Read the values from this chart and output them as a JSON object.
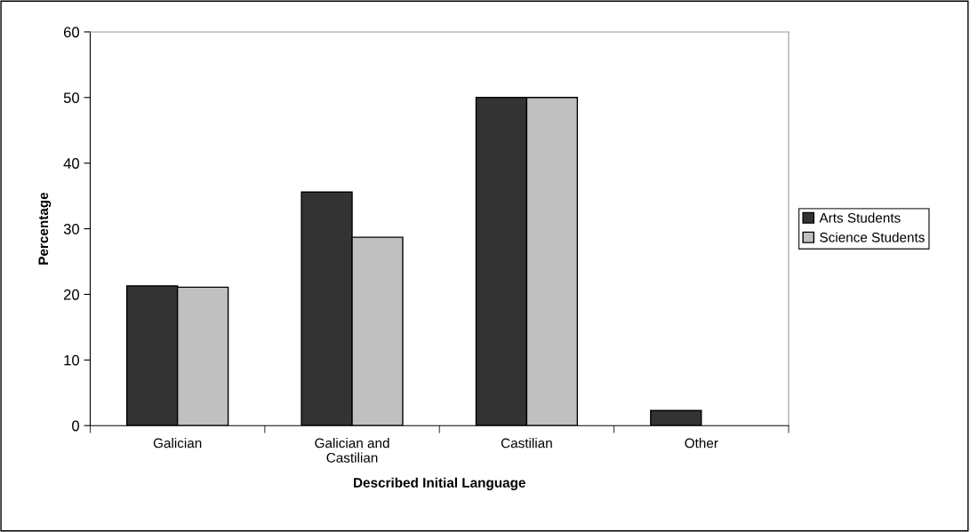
{
  "chart_data": {
    "type": "bar",
    "xlabel": "Described Initial Language",
    "ylabel": "Percentage",
    "categories": [
      "Galician",
      "Galician and\nCastilian",
      "Castilian",
      "Other"
    ],
    "series": [
      {
        "name": "Arts Students",
        "color": "#333333",
        "values": [
          21.3,
          35.6,
          50,
          2.3
        ]
      },
      {
        "name": "Science Students",
        "color": "#c0c0c0",
        "values": [
          21.1,
          28.7,
          50,
          0
        ]
      }
    ],
    "ylim": [
      0,
      60
    ],
    "yticks": [
      0,
      10,
      20,
      30,
      40,
      50,
      60
    ],
    "grid": false,
    "legend": "right"
  }
}
